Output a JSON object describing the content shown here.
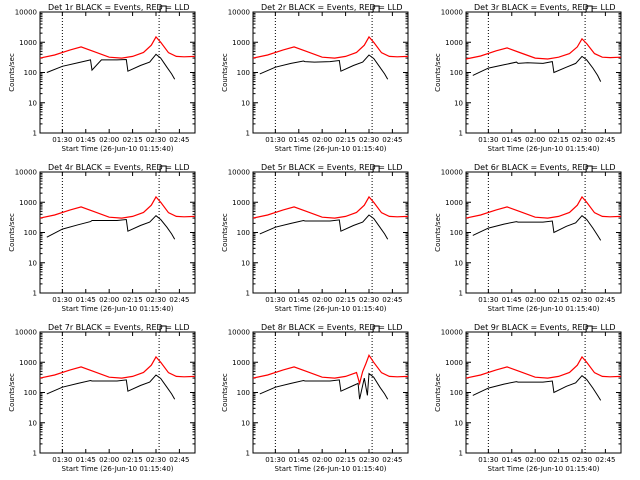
{
  "colors": {
    "events": "#000000",
    "lld": "#ff0000"
  },
  "chart_data": [
    {
      "type": "line",
      "title": "Det 1r BLACK = Events, RED = LLD",
      "xlabel": "Start Time (26-Jun-10 01:15:40)",
      "ylabel": "Counts/sec",
      "yscale": "log",
      "ylim": [
        1,
        10000
      ],
      "yticks": [
        "1",
        "10",
        "100",
        "1000",
        "10000"
      ],
      "xlim": [
        "01:15:40",
        "02:55:00"
      ],
      "xticks": [
        "01:30",
        "01:45",
        "02:00",
        "02:15",
        "02:30",
        "02:45"
      ],
      "reference_lines": [
        "01:30",
        "02:32"
      ],
      "series": [
        {
          "role": "events",
          "x": [
            "01:20",
            "01:30",
            "01:40",
            "01:48",
            "01:49",
            "01:55",
            "02:05",
            "02:11",
            "02:12",
            "02:20",
            "02:26",
            "02:30",
            "02:33",
            "02:37",
            "02:40",
            "02:42"
          ],
          "y": [
            100,
            160,
            210,
            260,
            120,
            260,
            260,
            270,
            110,
            170,
            220,
            400,
            300,
            150,
            90,
            60
          ]
        },
        {
          "role": "lld",
          "x": [
            "01:15:40",
            "01:25",
            "01:35",
            "01:42",
            "01:50",
            "02:00",
            "02:08",
            "02:15",
            "02:22",
            "02:27",
            "02:30",
            "02:33",
            "02:38",
            "02:43",
            "02:48",
            "02:55"
          ],
          "y": [
            300,
            380,
            560,
            700,
            500,
            320,
            300,
            340,
            460,
            800,
            1500,
            1000,
            450,
            340,
            330,
            340
          ]
        }
      ]
    },
    {
      "type": "line",
      "title": "Det 2r BLACK = Events, RED = LLD",
      "xlabel": "Start Time (26-Jun-10 01:15:40)",
      "ylabel": "Counts/sec",
      "yscale": "log",
      "ylim": [
        1,
        10000
      ],
      "yticks": [
        "1",
        "10",
        "100",
        "1000",
        "10000"
      ],
      "xlim": [
        "01:15:40",
        "02:55:00"
      ],
      "xticks": [
        "01:30",
        "01:45",
        "02:00",
        "02:15",
        "02:30",
        "02:45"
      ],
      "reference_lines": [
        "01:30",
        "02:32"
      ],
      "series": [
        {
          "role": "events",
          "x": [
            "01:20",
            "01:30",
            "01:40",
            "01:48",
            "01:49",
            "01:55",
            "02:05",
            "02:11",
            "02:12",
            "02:20",
            "02:26",
            "02:30",
            "02:33",
            "02:37",
            "02:40",
            "02:42"
          ],
          "y": [
            90,
            150,
            200,
            240,
            230,
            220,
            230,
            250,
            110,
            170,
            220,
            380,
            290,
            150,
            90,
            60
          ]
        },
        {
          "role": "lld",
          "x": [
            "01:15:40",
            "01:25",
            "01:35",
            "01:42",
            "01:50",
            "02:00",
            "02:08",
            "02:15",
            "02:22",
            "02:27",
            "02:30",
            "02:33",
            "02:38",
            "02:43",
            "02:48",
            "02:55"
          ],
          "y": [
            300,
            380,
            560,
            700,
            500,
            320,
            300,
            340,
            460,
            800,
            1500,
            1000,
            450,
            340,
            330,
            340
          ]
        }
      ]
    },
    {
      "type": "line",
      "title": "Det 3r BLACK = Events, RED = LLD",
      "xlabel": "Start Time (26-Jun-10 01:15:40)",
      "ylabel": "Counts/sec",
      "yscale": "log",
      "ylim": [
        1,
        10000
      ],
      "yticks": [
        "1",
        "10",
        "100",
        "1000",
        "10000"
      ],
      "xlim": [
        "01:15:40",
        "02:55:00"
      ],
      "xticks": [
        "01:30",
        "01:45",
        "02:00",
        "02:15",
        "02:30",
        "02:45"
      ],
      "reference_lines": [
        "01:30",
        "02:32"
      ],
      "series": [
        {
          "role": "events",
          "x": [
            "01:20",
            "01:30",
            "01:40",
            "01:48",
            "01:49",
            "01:55",
            "02:05",
            "02:11",
            "02:12",
            "02:20",
            "02:26",
            "02:30",
            "02:33",
            "02:37",
            "02:40",
            "02:42"
          ],
          "y": [
            80,
            140,
            180,
            220,
            200,
            210,
            200,
            230,
            100,
            150,
            200,
            340,
            260,
            140,
            80,
            50
          ]
        },
        {
          "role": "lld",
          "x": [
            "01:15:40",
            "01:25",
            "01:35",
            "01:42",
            "01:50",
            "02:00",
            "02:08",
            "02:15",
            "02:22",
            "02:27",
            "02:30",
            "02:33",
            "02:38",
            "02:43",
            "02:48",
            "02:55"
          ],
          "y": [
            280,
            350,
            520,
            650,
            460,
            300,
            280,
            320,
            420,
            700,
            1300,
            900,
            420,
            320,
            310,
            320
          ]
        }
      ]
    },
    {
      "type": "line",
      "title": "Det 4r BLACK = Events, RED = LLD",
      "xlabel": "Start Time (26-Jun-10 01:15:40)",
      "ylabel": "Counts/sec",
      "yscale": "log",
      "ylim": [
        1,
        10000
      ],
      "yticks": [
        "1",
        "10",
        "100",
        "1000",
        "10000"
      ],
      "xlim": [
        "01:15:40",
        "02:55:00"
      ],
      "xticks": [
        "01:30",
        "01:45",
        "02:00",
        "02:15",
        "02:30",
        "02:45"
      ],
      "reference_lines": [
        "01:30",
        "02:32"
      ],
      "series": [
        {
          "role": "events",
          "x": [
            "01:20",
            "01:30",
            "01:40",
            "01:48",
            "01:49",
            "01:55",
            "02:05",
            "02:11",
            "02:12",
            "02:20",
            "02:26",
            "02:30",
            "02:33",
            "02:37",
            "02:40",
            "02:42"
          ],
          "y": [
            70,
            130,
            180,
            230,
            250,
            250,
            250,
            270,
            110,
            170,
            220,
            360,
            270,
            150,
            90,
            60
          ]
        },
        {
          "role": "lld",
          "x": [
            "01:15:40",
            "01:25",
            "01:35",
            "01:42",
            "01:50",
            "02:00",
            "02:08",
            "02:15",
            "02:22",
            "02:27",
            "02:30",
            "02:33",
            "02:38",
            "02:43",
            "02:48",
            "02:55"
          ],
          "y": [
            300,
            380,
            560,
            700,
            500,
            320,
            300,
            340,
            460,
            800,
            1500,
            1000,
            450,
            340,
            330,
            340
          ]
        }
      ]
    },
    {
      "type": "line",
      "title": "Det 5r BLACK = Events, RED = LLD",
      "xlabel": "Start Time (26-Jun-10 01:15:40)",
      "ylabel": "Counts/sec",
      "yscale": "log",
      "ylim": [
        1,
        10000
      ],
      "yticks": [
        "1",
        "10",
        "100",
        "1000",
        "10000"
      ],
      "xlim": [
        "01:15:40",
        "02:55:00"
      ],
      "xticks": [
        "01:30",
        "01:45",
        "02:00",
        "02:15",
        "02:30",
        "02:45"
      ],
      "reference_lines": [
        "01:30",
        "02:32"
      ],
      "series": [
        {
          "role": "events",
          "x": [
            "01:20",
            "01:30",
            "01:40",
            "01:48",
            "01:49",
            "01:55",
            "02:05",
            "02:11",
            "02:12",
            "02:20",
            "02:26",
            "02:30",
            "02:33",
            "02:37",
            "02:40",
            "02:42"
          ],
          "y": [
            90,
            150,
            200,
            250,
            240,
            240,
            240,
            260,
            110,
            170,
            220,
            380,
            290,
            150,
            90,
            60
          ]
        },
        {
          "role": "lld",
          "x": [
            "01:15:40",
            "01:25",
            "01:35",
            "01:42",
            "01:50",
            "02:00",
            "02:08",
            "02:15",
            "02:22",
            "02:27",
            "02:30",
            "02:33",
            "02:38",
            "02:43",
            "02:48",
            "02:55"
          ],
          "y": [
            300,
            380,
            560,
            700,
            500,
            320,
            300,
            340,
            460,
            800,
            1500,
            1000,
            450,
            340,
            330,
            340
          ]
        }
      ]
    },
    {
      "type": "line",
      "title": "Det 6r BLACK = Events, RED = LLD",
      "xlabel": "Start Time (26-Jun-10 01:15:40)",
      "ylabel": "Counts/sec",
      "yscale": "log",
      "ylim": [
        1,
        10000
      ],
      "yticks": [
        "1",
        "10",
        "100",
        "1000",
        "10000"
      ],
      "xlim": [
        "01:15:40",
        "02:55:00"
      ],
      "xticks": [
        "01:30",
        "01:45",
        "02:00",
        "02:15",
        "02:30",
        "02:45"
      ],
      "reference_lines": [
        "01:30",
        "02:32"
      ],
      "series": [
        {
          "role": "events",
          "x": [
            "01:20",
            "01:30",
            "01:40",
            "01:48",
            "01:49",
            "01:55",
            "02:05",
            "02:11",
            "02:12",
            "02:20",
            "02:26",
            "02:30",
            "02:33",
            "02:37",
            "02:40",
            "02:42"
          ],
          "y": [
            80,
            140,
            190,
            230,
            220,
            220,
            220,
            240,
            100,
            160,
            210,
            360,
            270,
            140,
            80,
            55
          ]
        },
        {
          "role": "lld",
          "x": [
            "01:15:40",
            "01:25",
            "01:35",
            "01:42",
            "01:50",
            "02:00",
            "02:08",
            "02:15",
            "02:22",
            "02:27",
            "02:30",
            "02:33",
            "02:38",
            "02:43",
            "02:48",
            "02:55"
          ],
          "y": [
            300,
            380,
            560,
            700,
            500,
            320,
            300,
            340,
            460,
            800,
            1500,
            1000,
            450,
            340,
            330,
            340
          ]
        }
      ]
    },
    {
      "type": "line",
      "title": "Det 7r BLACK = Events, RED = LLD",
      "xlabel": "Start Time (26-Jun-10 01:15:40)",
      "ylabel": "Counts/sec",
      "yscale": "log",
      "ylim": [
        1,
        10000
      ],
      "yticks": [
        "1",
        "10",
        "100",
        "1000",
        "10000"
      ],
      "xlim": [
        "01:15:40",
        "02:55:00"
      ],
      "xticks": [
        "01:30",
        "01:45",
        "02:00",
        "02:15",
        "02:30",
        "02:45"
      ],
      "reference_lines": [
        "01:30",
        "02:32"
      ],
      "series": [
        {
          "role": "events",
          "x": [
            "01:20",
            "01:30",
            "01:40",
            "01:48",
            "01:49",
            "01:55",
            "02:05",
            "02:11",
            "02:12",
            "02:20",
            "02:26",
            "02:30",
            "02:33",
            "02:37",
            "02:40",
            "02:42"
          ],
          "y": [
            90,
            150,
            200,
            250,
            240,
            240,
            240,
            260,
            110,
            170,
            220,
            380,
            290,
            150,
            90,
            60
          ]
        },
        {
          "role": "lld",
          "x": [
            "01:15:40",
            "01:25",
            "01:35",
            "01:42",
            "01:50",
            "02:00",
            "02:08",
            "02:15",
            "02:22",
            "02:27",
            "02:30",
            "02:33",
            "02:38",
            "02:43",
            "02:48",
            "02:55"
          ],
          "y": [
            300,
            380,
            560,
            700,
            500,
            320,
            300,
            340,
            460,
            800,
            1500,
            1000,
            450,
            340,
            330,
            340
          ]
        }
      ]
    },
    {
      "type": "line",
      "title": "Det 8r BLACK = Events, RED = LLD",
      "xlabel": "Start Time (26-Jun-10 01:15:40)",
      "ylabel": "Counts/sec",
      "yscale": "log",
      "ylim": [
        1,
        10000
      ],
      "yticks": [
        "1",
        "10",
        "100",
        "1000",
        "10000"
      ],
      "xlim": [
        "01:15:40",
        "02:55:00"
      ],
      "xticks": [
        "01:30",
        "01:45",
        "02:00",
        "02:15",
        "02:30",
        "02:45"
      ],
      "reference_lines": [
        "01:30",
        "02:32"
      ],
      "series": [
        {
          "role": "events",
          "x": [
            "01:20",
            "01:30",
            "01:40",
            "01:48",
            "01:49",
            "01:55",
            "02:05",
            "02:11",
            "02:12",
            "02:20",
            "02:23",
            "02:24",
            "02:27",
            "02:29",
            "02:30",
            "02:33",
            "02:37",
            "02:40",
            "02:42"
          ],
          "y": [
            90,
            150,
            200,
            250,
            240,
            240,
            240,
            260,
            110,
            170,
            200,
            60,
            300,
            80,
            420,
            320,
            150,
            90,
            60
          ]
        },
        {
          "role": "lld",
          "x": [
            "01:15:40",
            "01:25",
            "01:35",
            "01:42",
            "01:50",
            "02:00",
            "02:08",
            "02:15",
            "02:22",
            "02:24",
            "02:26",
            "02:28",
            "02:30",
            "02:33",
            "02:38",
            "02:43",
            "02:48",
            "02:55"
          ],
          "y": [
            300,
            380,
            560,
            700,
            500,
            320,
            300,
            340,
            460,
            200,
            500,
            900,
            1700,
            1000,
            450,
            340,
            330,
            340
          ]
        }
      ]
    },
    {
      "type": "line",
      "title": "Det 9r BLACK = Events, RED = LLD",
      "xlabel": "Start Time (26-Jun-10 01:15:40)",
      "ylabel": "Counts/sec",
      "yscale": "log",
      "ylim": [
        1,
        10000
      ],
      "yticks": [
        "1",
        "10",
        "100",
        "1000",
        "10000"
      ],
      "xlim": [
        "01:15:40",
        "02:55:00"
      ],
      "xticks": [
        "01:30",
        "01:45",
        "02:00",
        "02:15",
        "02:30",
        "02:45"
      ],
      "reference_lines": [
        "01:30",
        "02:32"
      ],
      "series": [
        {
          "role": "events",
          "x": [
            "01:20",
            "01:30",
            "01:40",
            "01:48",
            "01:49",
            "01:55",
            "02:05",
            "02:11",
            "02:12",
            "02:20",
            "02:26",
            "02:30",
            "02:33",
            "02:37",
            "02:40",
            "02:42"
          ],
          "y": [
            80,
            140,
            190,
            230,
            220,
            220,
            220,
            240,
            100,
            160,
            210,
            360,
            270,
            140,
            80,
            55
          ]
        },
        {
          "role": "lld",
          "x": [
            "01:15:40",
            "01:25",
            "01:35",
            "01:42",
            "01:50",
            "02:00",
            "02:08",
            "02:15",
            "02:22",
            "02:27",
            "02:30",
            "02:33",
            "02:38",
            "02:43",
            "02:48",
            "02:55"
          ],
          "y": [
            300,
            380,
            560,
            700,
            500,
            320,
            300,
            340,
            460,
            800,
            1500,
            1000,
            450,
            340,
            330,
            340
          ]
        }
      ]
    }
  ]
}
